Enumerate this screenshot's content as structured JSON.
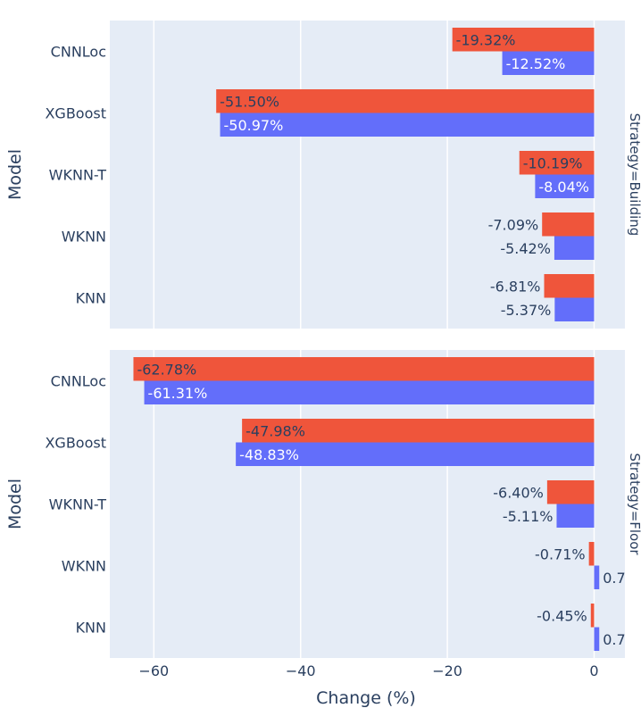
{
  "chart_data": {
    "type": "bar",
    "orientation": "horizontal",
    "xlabel": "Change (%)",
    "ylabel": "Model",
    "xlim": [
      -66,
      4.2
    ],
    "x_ticks": [
      -60,
      -40,
      -20,
      0
    ],
    "x_tick_labels": [
      "−60",
      "−40",
      "−20",
      "0"
    ],
    "categories": [
      "CNNLoc",
      "XGBoost",
      "WKNN-T",
      "WKNN",
      "KNN"
    ],
    "series_colors": [
      "#ef553b",
      "#636efa"
    ],
    "grid": true,
    "facets": [
      {
        "label": "Strategy=Building",
        "series": [
          {
            "values": [
              -19.32,
              -51.5,
              -10.19,
              -7.09,
              -6.81
            ],
            "labels": [
              "-19.32%",
              "-51.50%",
              "-10.19%",
              "-7.09%",
              "-6.81%"
            ]
          },
          {
            "values": [
              -12.52,
              -50.97,
              -8.04,
              -5.42,
              -5.37
            ],
            "labels": [
              "-12.52%",
              "-50.97%",
              "-8.04%",
              "-5.42%",
              "-5.37%"
            ]
          }
        ]
      },
      {
        "label": "Strategy=Floor",
        "series": [
          {
            "values": [
              -62.78,
              -47.98,
              -6.4,
              -0.71,
              -0.45
            ],
            "labels": [
              "-62.78%",
              "-47.98%",
              "-6.40%",
              "-0.71%",
              "-0.45%"
            ]
          },
          {
            "values": [
              -61.31,
              -48.83,
              -5.11,
              0.7,
              0.7
            ],
            "labels": [
              "-61.31%",
              "-48.83%",
              "-5.11%",
              "0.7",
              "0.7"
            ]
          }
        ]
      }
    ]
  }
}
